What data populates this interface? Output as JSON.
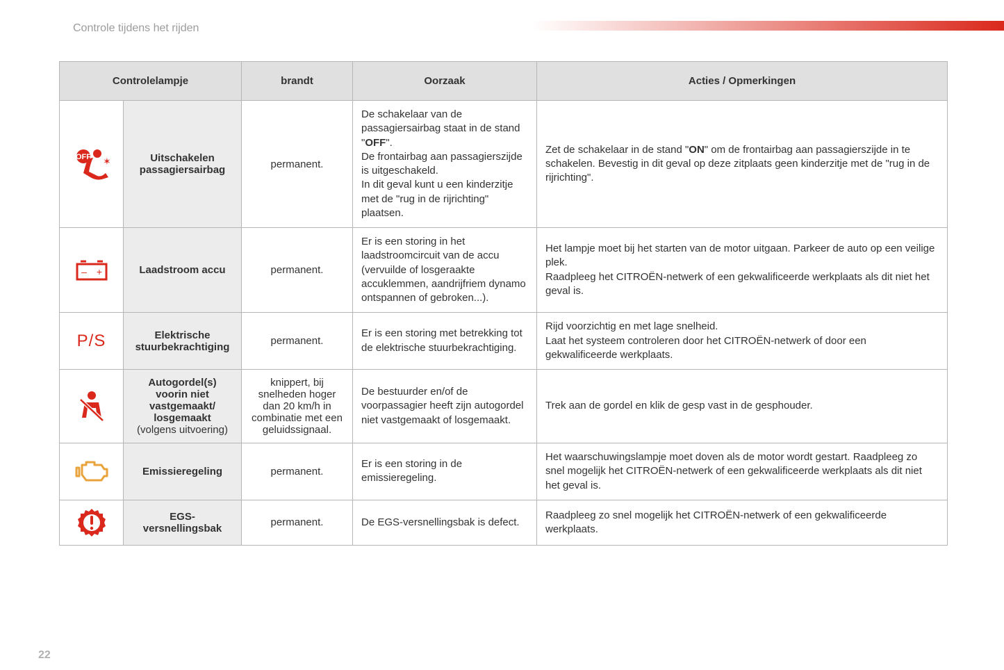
{
  "page": {
    "section_title": "Controle tijdens het rijden",
    "page_number": "22"
  },
  "colors": {
    "icon_red": "#da291c",
    "icon_amber": "#e8a33d",
    "header_bg": "#e0e0e0",
    "name_bg": "#ececec",
    "border": "#b5b5b5",
    "text": "#333333",
    "muted": "#9c9c9c"
  },
  "table": {
    "headers": {
      "lamp": "Controlelampje",
      "state": "brandt",
      "cause": "Oorzaak",
      "action": "Acties / Opmerkingen"
    },
    "rows": [
      {
        "icon": "airbag",
        "icon_color": "red",
        "name_html": "Uitschakelen passagiersairbag",
        "state": "permanent.",
        "cause_html": "De schakelaar van de passagiersairbag staat in de stand \"<b>OFF</b>\".<br>De frontairbag aan passagierszijde is uitgeschakeld.<br>In dit geval kunt u een kinderzitje met de \"rug in de rijrichting\" plaatsen.",
        "action_html": "Zet de schakelaar in de stand \"<b>ON</b>\" om de frontairbag aan passagierszijde in te schakelen. Bevestig in dit geval op deze zitplaats geen kinderzitje met de \"rug in de rijrichting\"."
      },
      {
        "icon": "battery",
        "icon_color": "red",
        "name_html": "Laadstroom accu",
        "state": "permanent.",
        "cause_html": "Er is een storing in het laadstroomcircuit van de accu (vervuilde of losgeraakte accuklemmen, aandrijfriem dynamo ontspannen of gebroken...).",
        "action_html": "Het lampje moet bij het starten van de motor uitgaan. Parkeer de auto op een veilige plek.<br>Raadpleeg het CITROËN-netwerk of een gekwalificeerde werkplaats als dit niet het geval is."
      },
      {
        "icon": "ps",
        "icon_color": "red",
        "name_html": "Elektrische stuurbekrachtiging",
        "state": "permanent.",
        "cause_html": "Er is een storing met betrekking tot de elektrische stuurbekrachtiging.",
        "action_html": "Rijd voorzichtig en met lage snelheid.<br>Laat het systeem controleren door het CITROËN-netwerk of door een gekwalificeerde werkplaats."
      },
      {
        "icon": "seatbelt",
        "icon_color": "red",
        "name_html": "Autogordel(s) voorin niet vastgemaakt/<wbr>losgemaakt<br><span class=\"norm\">(volgens uitvoering)</span>",
        "state": "knippert, bij snelheden hoger dan 20 km/h in combinatie met een geluidssignaal.",
        "cause_html": "De bestuurder en/of de voorpassagier heeft zijn autogordel niet vastgemaakt of losgemaakt.",
        "action_html": "Trek aan de gordel en klik de gesp vast in de gesphouder."
      },
      {
        "icon": "engine",
        "icon_color": "amber",
        "name_html": "Emissieregeling",
        "state": "permanent.",
        "cause_html": "Er is een storing in de emissieregeling.",
        "action_html": "Het waarschuwingslampje moet doven als de motor wordt gestart. Raadpleeg zo snel mogelijk het CITROËN-netwerk of een gekwalificeerde werkplaats als dit niet het geval is."
      },
      {
        "icon": "gear",
        "icon_color": "red",
        "name_html": "EGS-versnellingsbak",
        "state": "permanent.",
        "cause_html": "De EGS-versnellingsbak is defect.",
        "action_html": "Raadpleeg zo snel mogelijk het CITROËN-netwerk of een gekwalificeerde werkplaats."
      }
    ]
  }
}
